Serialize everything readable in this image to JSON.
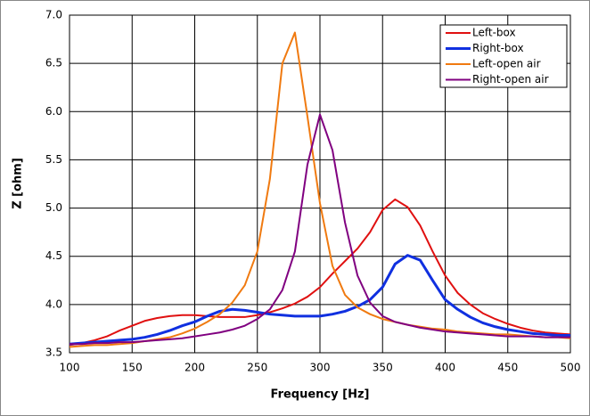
{
  "chart_data": {
    "type": "line",
    "x_label": "Frequency [Hz]",
    "y_label": "Z [ohm]",
    "x": [
      100,
      110,
      120,
      130,
      140,
      150,
      160,
      170,
      180,
      190,
      200,
      210,
      220,
      230,
      240,
      250,
      260,
      270,
      280,
      290,
      300,
      310,
      320,
      330,
      340,
      350,
      360,
      370,
      380,
      390,
      400,
      410,
      420,
      430,
      440,
      450,
      460,
      470,
      480,
      490,
      500
    ],
    "series": [
      {
        "name": "Left-box",
        "color": "#e01010",
        "width": 2,
        "values": [
          3.58,
          3.6,
          3.63,
          3.67,
          3.73,
          3.78,
          3.83,
          3.86,
          3.88,
          3.89,
          3.89,
          3.88,
          3.87,
          3.87,
          3.87,
          3.89,
          3.92,
          3.96,
          4.01,
          4.08,
          4.18,
          4.32,
          4.45,
          4.58,
          4.75,
          4.98,
          5.09,
          5.01,
          4.82,
          4.55,
          4.3,
          4.12,
          4.0,
          3.91,
          3.85,
          3.8,
          3.76,
          3.73,
          3.71,
          3.7,
          3.69
        ]
      },
      {
        "name": "Right-box",
        "color": "#1030e0",
        "width": 3,
        "values": [
          3.59,
          3.6,
          3.61,
          3.62,
          3.63,
          3.64,
          3.66,
          3.69,
          3.73,
          3.78,
          3.82,
          3.88,
          3.93,
          3.95,
          3.94,
          3.92,
          3.9,
          3.89,
          3.88,
          3.88,
          3.88,
          3.9,
          3.93,
          3.98,
          4.05,
          4.18,
          4.42,
          4.51,
          4.46,
          4.25,
          4.05,
          3.95,
          3.87,
          3.81,
          3.77,
          3.74,
          3.72,
          3.7,
          3.69,
          3.68,
          3.68
        ]
      },
      {
        "name": "Left-open air",
        "color": "#f07a10",
        "width": 2,
        "values": [
          3.56,
          3.57,
          3.58,
          3.58,
          3.59,
          3.6,
          3.62,
          3.64,
          3.66,
          3.7,
          3.75,
          3.82,
          3.9,
          4.02,
          4.2,
          4.55,
          5.3,
          6.5,
          6.82,
          5.95,
          5.05,
          4.4,
          4.1,
          3.97,
          3.9,
          3.85,
          3.82,
          3.79,
          3.77,
          3.75,
          3.74,
          3.72,
          3.71,
          3.7,
          3.69,
          3.69,
          3.68,
          3.67,
          3.66,
          3.66,
          3.65
        ]
      },
      {
        "name": "Right-open air",
        "color": "#800080",
        "width": 2,
        "values": [
          3.59,
          3.59,
          3.6,
          3.6,
          3.61,
          3.61,
          3.62,
          3.63,
          3.64,
          3.65,
          3.67,
          3.69,
          3.71,
          3.74,
          3.78,
          3.85,
          3.95,
          4.15,
          4.55,
          5.45,
          5.97,
          5.6,
          4.85,
          4.3,
          4.02,
          3.88,
          3.82,
          3.79,
          3.76,
          3.74,
          3.72,
          3.71,
          3.7,
          3.69,
          3.68,
          3.67,
          3.67,
          3.67,
          3.66,
          3.66,
          3.66
        ]
      }
    ],
    "xlim": [
      100,
      500
    ],
    "xticks": [
      100,
      150,
      200,
      250,
      300,
      350,
      400,
      450,
      500
    ],
    "ylim": [
      3.5,
      7.0
    ],
    "yticks": [
      3.5,
      {
        "value": 4,
        "label": "4.0"
      },
      4.5,
      {
        "value": 5,
        "label": "5.0"
      },
      5.5,
      {
        "value": 6,
        "label": "6.0"
      },
      6.5,
      {
        "value": 7,
        "label": "7.0"
      }
    ],
    "grid": true,
    "legend": "top-right"
  }
}
